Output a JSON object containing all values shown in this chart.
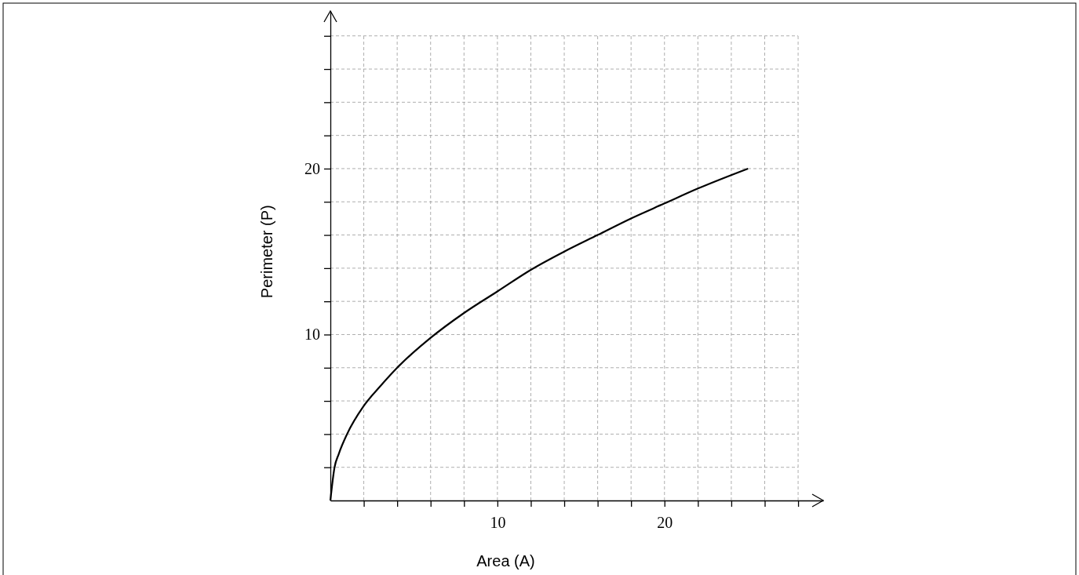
{
  "chart_data": {
    "type": "line",
    "xlabel": "Area (A)",
    "ylabel": "Perimeter (P)",
    "x": [
      0,
      0.25,
      0.5,
      1,
      2,
      3,
      4,
      6,
      8,
      10,
      12,
      14,
      16,
      18,
      20,
      22,
      25
    ],
    "series": [
      {
        "color": "#000000",
        "values": [
          0,
          2,
          2.8,
          4,
          5.7,
          6.9,
          8,
          9.8,
          11.3,
          12.6,
          13.9,
          15,
          16,
          17,
          17.9,
          18.8,
          20
        ]
      }
    ],
    "xlim": [
      0,
      29.5
    ],
    "ylim": [
      0,
      29.5
    ],
    "xticks": [
      {
        "value": 2,
        "label": null
      },
      {
        "value": 4,
        "label": null
      },
      {
        "value": 6,
        "label": null
      },
      {
        "value": 8,
        "label": null
      },
      10,
      {
        "value": 12,
        "label": null
      },
      {
        "value": 14,
        "label": null
      },
      {
        "value": 16,
        "label": null
      },
      {
        "value": 18,
        "label": null
      },
      20,
      {
        "value": 22,
        "label": null
      },
      {
        "value": 24,
        "label": null
      },
      {
        "value": 26,
        "label": null
      },
      {
        "value": 28,
        "label": null
      }
    ],
    "yticks": [
      {
        "value": 2,
        "label": null
      },
      {
        "value": 4,
        "label": null
      },
      {
        "value": 6,
        "label": null
      },
      {
        "value": 8,
        "label": null
      },
      10,
      {
        "value": 12,
        "label": null
      },
      {
        "value": 14,
        "label": null
      },
      {
        "value": 16,
        "label": null
      },
      {
        "value": 18,
        "label": null
      },
      20,
      {
        "value": 22,
        "label": null
      },
      {
        "value": 24,
        "label": null
      },
      {
        "value": 26,
        "label": null
      },
      {
        "value": 28,
        "label": null
      }
    ],
    "grid": true,
    "marker": "none",
    "line_style": "solid"
  }
}
